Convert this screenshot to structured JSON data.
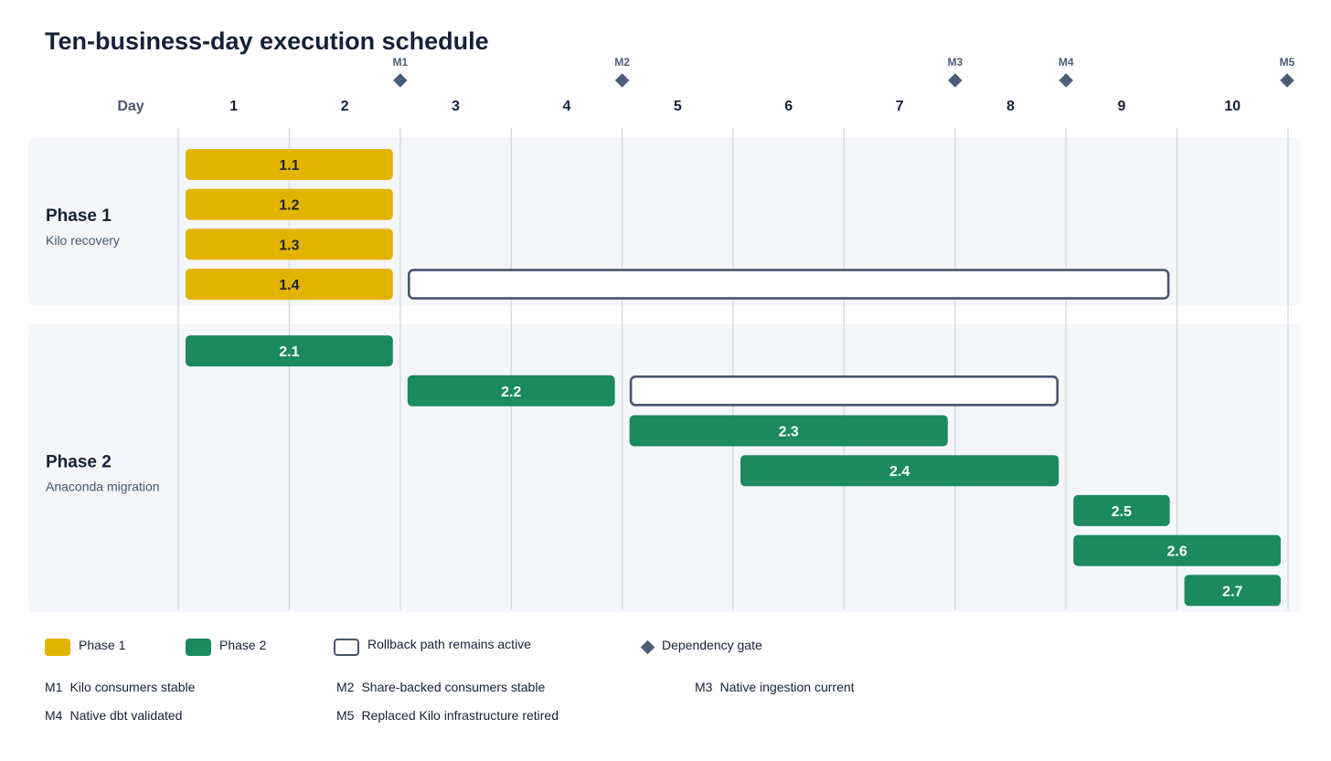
{
  "title": "Ten-business-day execution schedule",
  "chart_data": {
    "type": "gantt",
    "x_label": "Day",
    "days": [
      "1",
      "2",
      "3",
      "4",
      "5",
      "6",
      "7",
      "8",
      "9",
      "10"
    ],
    "xlim": [
      0,
      10
    ],
    "grid": true,
    "colors": {
      "phase1": "#e2b400",
      "phase2": "#1b8a5e",
      "rollback_border": "#46566f",
      "gate": "#4a5e7a",
      "panel": "#f4f6fa",
      "gridline": "#cfd8e3"
    },
    "phases": [
      {
        "name": "Phase 1",
        "subtitle": "Kilo recovery",
        "color": "phase1",
        "tasks": [
          {
            "label": "1.1",
            "start": 0,
            "end": 2
          },
          {
            "label": "1.2",
            "start": 0,
            "end": 2
          },
          {
            "label": "1.3",
            "start": 0,
            "end": 2
          },
          {
            "label": "1.4",
            "start": 0,
            "end": 2,
            "rollback": {
              "start": 2,
              "end": 9
            }
          }
        ]
      },
      {
        "name": "Phase 2",
        "subtitle": "Anaconda migration",
        "color": "phase2",
        "tasks": [
          {
            "label": "2.1",
            "start": 0,
            "end": 2
          },
          {
            "label": "2.2",
            "start": 2,
            "end": 4,
            "rollback": {
              "start": 4,
              "end": 8
            }
          },
          {
            "label": "2.3",
            "start": 4,
            "end": 7
          },
          {
            "label": "2.4",
            "start": 5,
            "end": 8
          },
          {
            "label": "2.5",
            "start": 8,
            "end": 9
          },
          {
            "label": "2.6",
            "start": 8,
            "end": 10
          },
          {
            "label": "2.7",
            "start": 9,
            "end": 10
          }
        ]
      }
    ],
    "milestones": [
      {
        "id": "M1",
        "day": 2,
        "text": "Kilo consumers stable"
      },
      {
        "id": "M2",
        "day": 4,
        "text": "Share-backed consumers stable"
      },
      {
        "id": "M3",
        "day": 7,
        "text": "Native ingestion current"
      },
      {
        "id": "M4",
        "day": 8,
        "text": "Native dbt validated"
      },
      {
        "id": "M5",
        "day": 10,
        "text": "Replaced Kilo infrastructure retired"
      }
    ]
  },
  "legend": {
    "phase1": "Phase 1",
    "phase2": "Phase 2",
    "rollback": "Rollback path remains active",
    "gate": "Dependency gate"
  }
}
